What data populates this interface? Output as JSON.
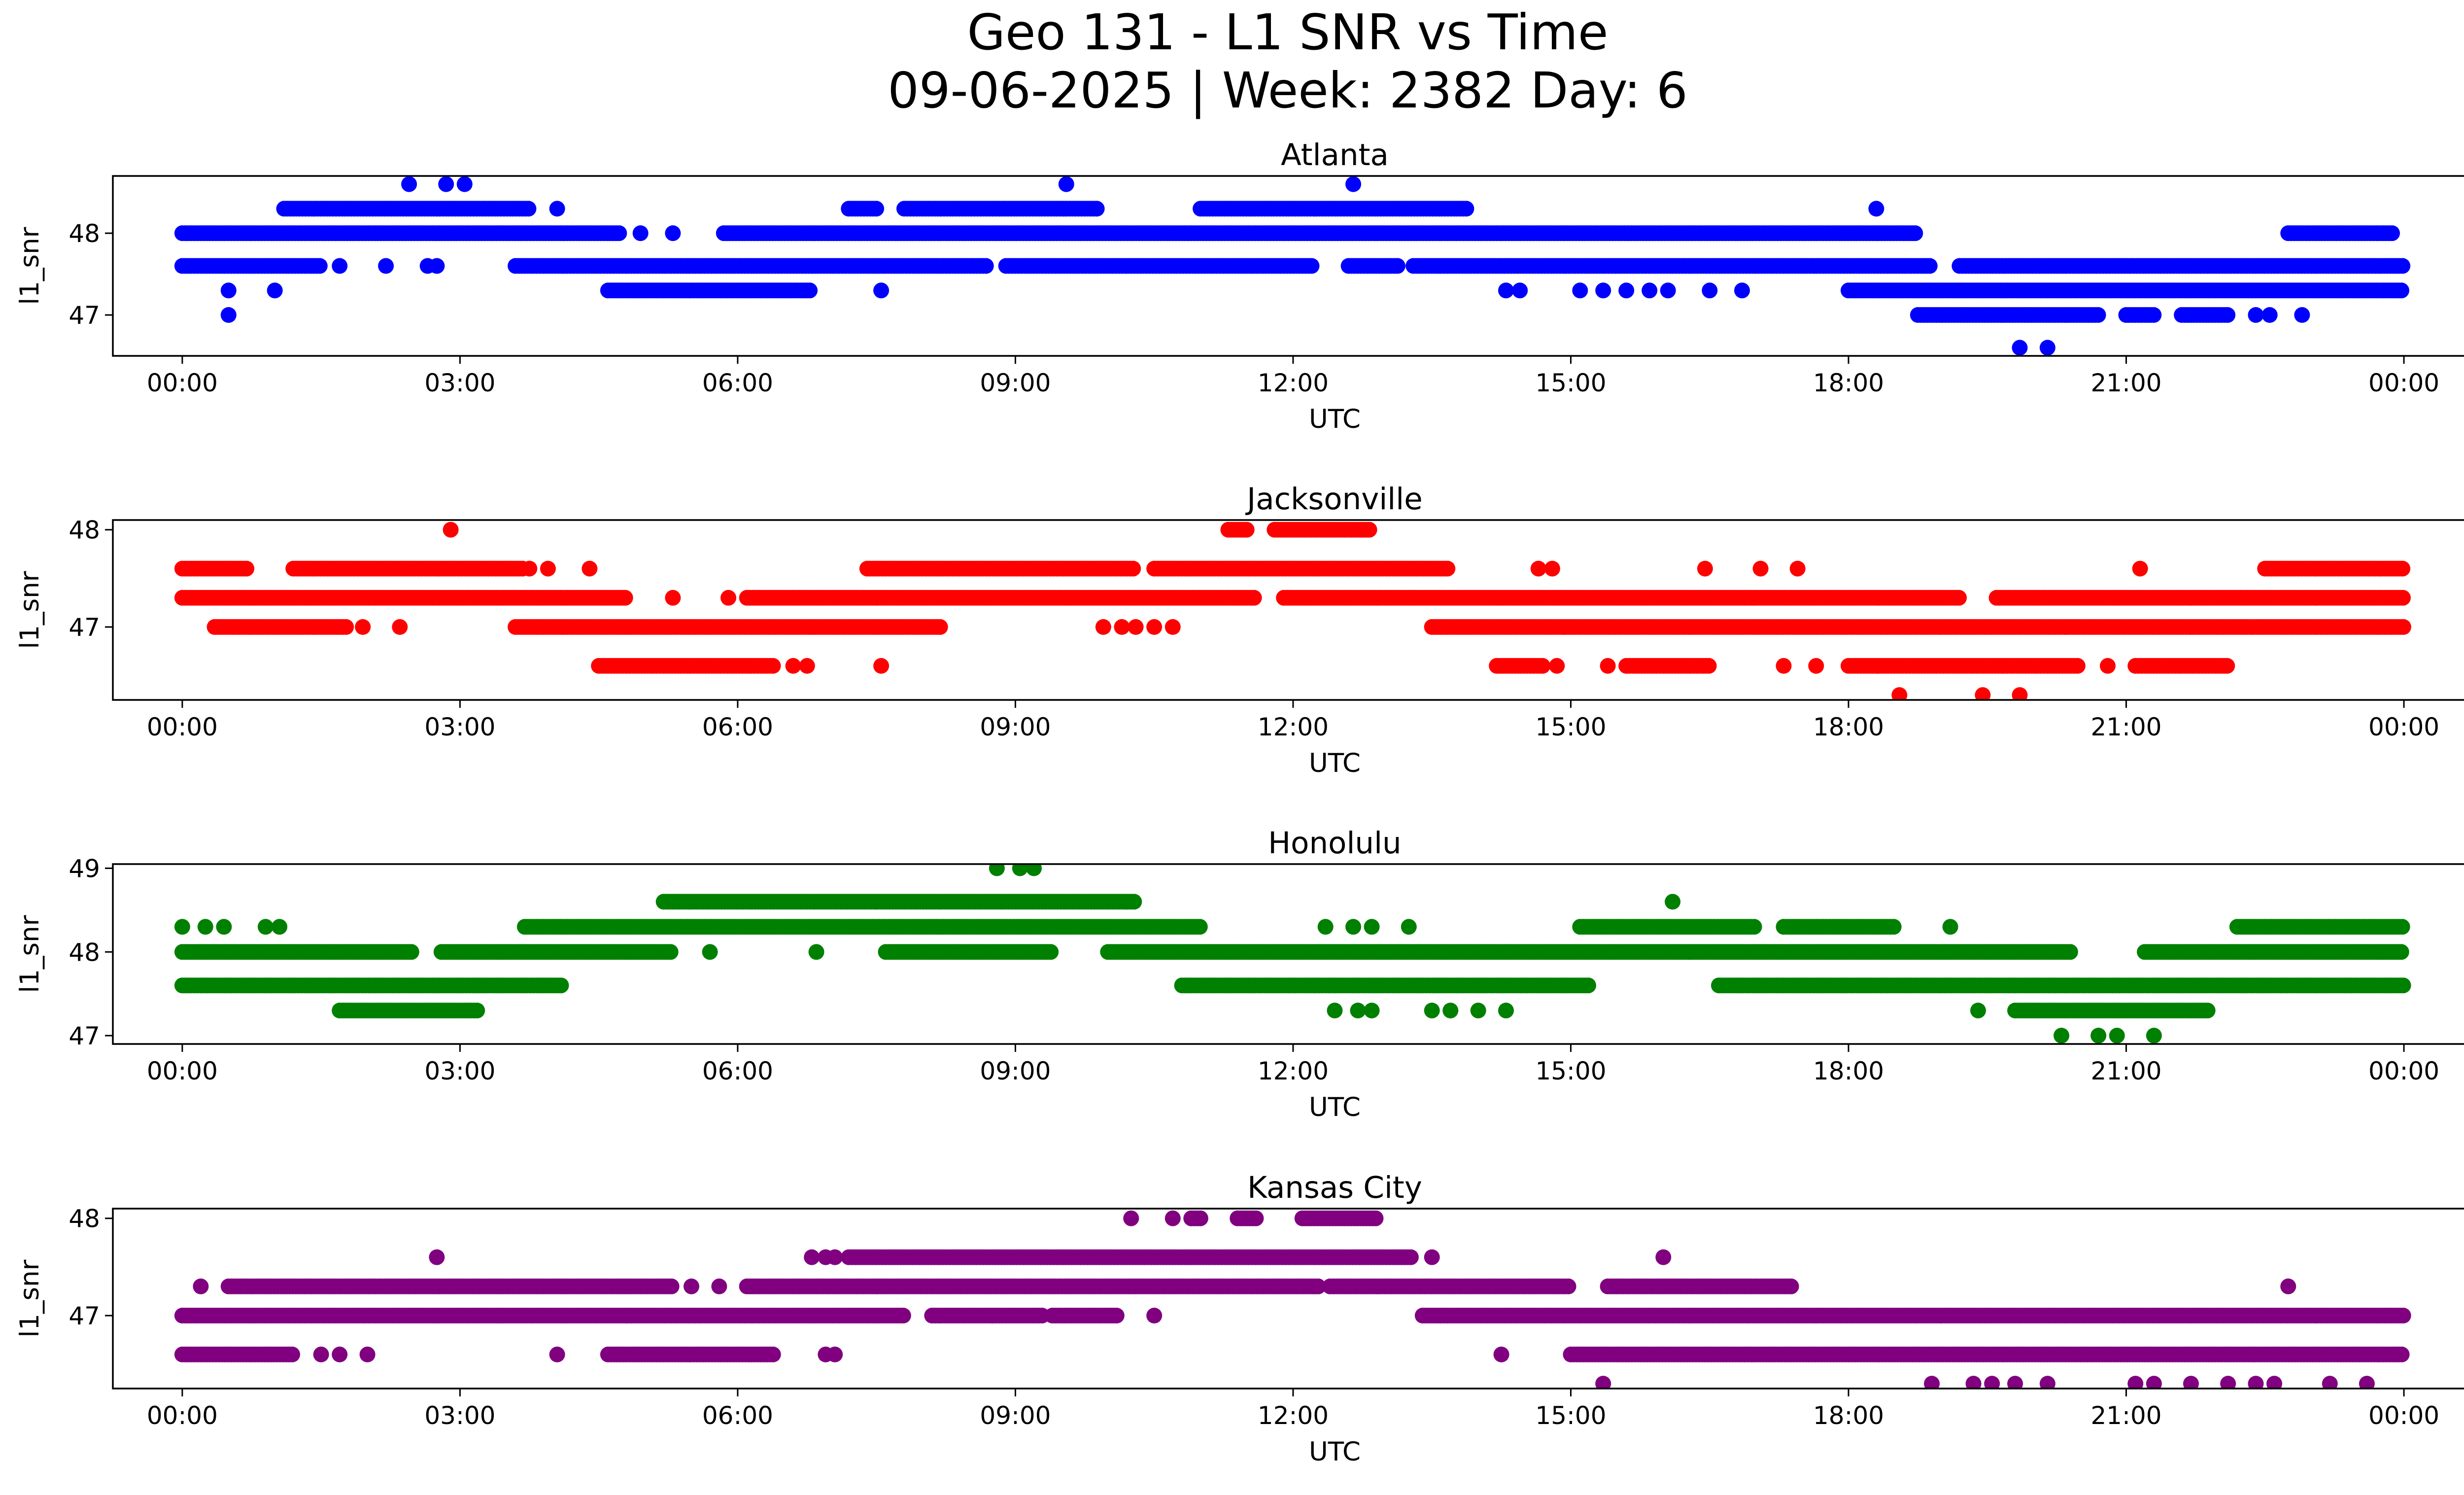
{
  "figure": {
    "title_line1": "Geo 131 - L1 SNR vs Time",
    "title_line2": "09-06-2025 | Week: 2382 Day: 6"
  },
  "chart_data": [
    {
      "type": "scatter",
      "title": "Atlanta",
      "xlabel": "UTC",
      "ylabel": "l1_snr",
      "color": "#0000ff",
      "xlim_hours": [
        -0.75,
        25.65
      ],
      "ylim": [
        46.5,
        48.7
      ],
      "yticks": [
        47,
        48
      ],
      "ytick_labels": [
        "47",
        "48"
      ],
      "xticks_hours": [
        0,
        3,
        6,
        9,
        12,
        15,
        18,
        21,
        24
      ],
      "xtick_labels": [
        "00:00",
        "03:00",
        "06:00",
        "09:00",
        "12:00",
        "15:00",
        "18:00",
        "21:00",
        "00:00"
      ],
      "segments": [
        {
          "y": 48.0,
          "ranges": [
            [
              0.0,
              4.75
            ],
            [
              5.85,
              18.75
            ],
            [
              22.75,
              23.9
            ]
          ]
        },
        {
          "y": 47.6,
          "ranges": [
            [
              0.0,
              1.5
            ],
            [
              3.6,
              8.7
            ],
            [
              8.9,
              12.2
            ],
            [
              12.6,
              13.15
            ],
            [
              13.3,
              18.9
            ],
            [
              19.2,
              24.0
            ]
          ]
        },
        {
          "y": 48.3,
          "ranges": [
            [
              1.1,
              3.75
            ],
            [
              7.2,
              7.5
            ],
            [
              7.8,
              9.9
            ],
            [
              11.0,
              13.9
            ]
          ]
        },
        {
          "y": 47.3,
          "ranges": [
            [
              4.6,
              6.8
            ],
            [
              18.0,
              24.0
            ]
          ]
        },
        {
          "y": 47.0,
          "ranges": [
            [
              18.75,
              20.7
            ],
            [
              21.0,
              21.3
            ],
            [
              21.6,
              22.1
            ]
          ]
        }
      ],
      "points": [
        [
          0.5,
          47.3
        ],
        [
          0.5,
          47.0
        ],
        [
          1.0,
          47.3
        ],
        [
          1.7,
          47.6
        ],
        [
          2.2,
          47.6
        ],
        [
          2.65,
          47.6
        ],
        [
          2.75,
          47.6
        ],
        [
          2.45,
          48.6
        ],
        [
          2.85,
          48.6
        ],
        [
          3.05,
          48.6
        ],
        [
          4.05,
          48.3
        ],
        [
          4.95,
          48.0
        ],
        [
          5.3,
          48.0
        ],
        [
          7.55,
          47.3
        ],
        [
          9.55,
          48.6
        ],
        [
          12.65,
          48.6
        ],
        [
          14.3,
          47.3
        ],
        [
          14.45,
          47.3
        ],
        [
          15.1,
          47.3
        ],
        [
          15.35,
          47.3
        ],
        [
          15.6,
          47.3
        ],
        [
          15.85,
          47.3
        ],
        [
          16.05,
          47.3
        ],
        [
          16.5,
          47.3
        ],
        [
          16.85,
          47.3
        ],
        [
          18.3,
          48.3
        ],
        [
          19.85,
          46.6
        ],
        [
          20.15,
          46.6
        ],
        [
          22.4,
          47.0
        ],
        [
          22.55,
          47.0
        ],
        [
          22.9,
          47.0
        ]
      ]
    },
    {
      "type": "scatter",
      "title": "Jacksonville",
      "xlabel": "UTC",
      "ylabel": "l1_snr",
      "color": "#ff0000",
      "xlim_hours": [
        -0.75,
        25.65
      ],
      "ylim": [
        46.25,
        48.1
      ],
      "yticks": [
        47,
        48
      ],
      "ytick_labels": [
        "47",
        "48"
      ],
      "xticks_hours": [
        0,
        3,
        6,
        9,
        12,
        15,
        18,
        21,
        24
      ],
      "xtick_labels": [
        "00:00",
        "03:00",
        "06:00",
        "09:00",
        "12:00",
        "15:00",
        "18:00",
        "21:00",
        "00:00"
      ],
      "segments": [
        {
          "y": 47.6,
          "ranges": [
            [
              0.0,
              0.7
            ],
            [
              1.2,
              3.7
            ],
            [
              7.4,
              10.3
            ],
            [
              10.5,
              13.7
            ],
            [
              22.5,
              24.0
            ]
          ]
        },
        {
          "y": 47.3,
          "ranges": [
            [
              0.0,
              4.8
            ],
            [
              6.1,
              11.6
            ],
            [
              11.9,
              19.2
            ],
            [
              19.6,
              24.0
            ]
          ]
        },
        {
          "y": 47.0,
          "ranges": [
            [
              0.35,
              1.8
            ],
            [
              3.6,
              8.2
            ],
            [
              13.5,
              24.0
            ]
          ]
        },
        {
          "y": 46.6,
          "ranges": [
            [
              4.5,
              6.4
            ],
            [
              14.2,
              14.7
            ],
            [
              15.6,
              16.5
            ],
            [
              18.0,
              20.5
            ],
            [
              21.1,
              22.1
            ]
          ]
        },
        {
          "y": 48.0,
          "ranges": [
            [
              11.3,
              11.5
            ],
            [
              11.8,
              12.85
            ]
          ]
        }
      ],
      "points": [
        [
          2.9,
          48.0
        ],
        [
          2.35,
          47.0
        ],
        [
          1.95,
          47.0
        ],
        [
          3.75,
          47.6
        ],
        [
          3.95,
          47.6
        ],
        [
          4.4,
          47.6
        ],
        [
          5.3,
          47.3
        ],
        [
          5.9,
          47.3
        ],
        [
          6.6,
          46.6
        ],
        [
          6.75,
          46.6
        ],
        [
          7.55,
          46.6
        ],
        [
          9.95,
          47.0
        ],
        [
          10.15,
          47.0
        ],
        [
          10.3,
          47.0
        ],
        [
          10.5,
          47.0
        ],
        [
          10.7,
          47.0
        ],
        [
          14.85,
          46.6
        ],
        [
          14.65,
          47.6
        ],
        [
          14.8,
          47.6
        ],
        [
          15.4,
          46.6
        ],
        [
          16.45,
          47.6
        ],
        [
          17.05,
          47.6
        ],
        [
          17.45,
          47.6
        ],
        [
          17.3,
          46.6
        ],
        [
          17.65,
          46.6
        ],
        [
          18.55,
          46.3
        ],
        [
          19.45,
          46.3
        ],
        [
          19.85,
          46.3
        ],
        [
          21.15,
          47.6
        ],
        [
          20.8,
          46.6
        ]
      ]
    },
    {
      "type": "scatter",
      "title": "Honolulu",
      "xlabel": "UTC",
      "ylabel": "l1_snr",
      "color": "#008000",
      "xlim_hours": [
        -0.75,
        25.65
      ],
      "ylim": [
        46.9,
        49.05
      ],
      "yticks": [
        47,
        48,
        49
      ],
      "ytick_labels": [
        "47",
        "48",
        "49"
      ],
      "xticks_hours": [
        0,
        3,
        6,
        9,
        12,
        15,
        18,
        21,
        24
      ],
      "xtick_labels": [
        "00:00",
        "03:00",
        "06:00",
        "09:00",
        "12:00",
        "15:00",
        "18:00",
        "21:00",
        "00:00"
      ],
      "segments": [
        {
          "y": 48.0,
          "ranges": [
            [
              0.0,
              2.5
            ],
            [
              2.8,
              5.3
            ],
            [
              7.6,
              9.4
            ],
            [
              10.0,
              20.4
            ],
            [
              21.2,
              24.0
            ]
          ]
        },
        {
          "y": 47.6,
          "ranges": [
            [
              0.0,
              4.1
            ],
            [
              10.8,
              15.2
            ],
            [
              16.6,
              24.0
            ]
          ]
        },
        {
          "y": 48.3,
          "ranges": [
            [
              3.7,
              11.0
            ],
            [
              15.1,
              17.0
            ],
            [
              17.3,
              18.5
            ],
            [
              22.2,
              24.0
            ]
          ]
        },
        {
          "y": 48.6,
          "ranges": [
            [
              5.2,
              10.3
            ]
          ]
        },
        {
          "y": 47.3,
          "ranges": [
            [
              1.7,
              3.2
            ],
            [
              19.8,
              21.9
            ]
          ]
        }
      ],
      "points": [
        [
          0.0,
          48.3
        ],
        [
          0.25,
          48.3
        ],
        [
          0.45,
          48.3
        ],
        [
          0.9,
          48.3
        ],
        [
          1.05,
          48.3
        ],
        [
          5.7,
          48.0
        ],
        [
          6.85,
          48.0
        ],
        [
          12.35,
          48.3
        ],
        [
          12.65,
          48.3
        ],
        [
          12.85,
          48.3
        ],
        [
          13.25,
          48.3
        ],
        [
          12.45,
          47.3
        ],
        [
          12.7,
          47.3
        ],
        [
          12.85,
          47.3
        ],
        [
          13.5,
          47.3
        ],
        [
          13.7,
          47.3
        ],
        [
          14.0,
          47.3
        ],
        [
          14.3,
          47.3
        ],
        [
          16.1,
          48.6
        ],
        [
          19.1,
          48.3
        ],
        [
          19.4,
          47.3
        ],
        [
          8.8,
          49.0
        ],
        [
          9.05,
          49.0
        ],
        [
          9.2,
          49.0
        ],
        [
          20.3,
          47.0
        ],
        [
          20.7,
          47.0
        ],
        [
          20.9,
          47.0
        ],
        [
          21.3,
          47.0
        ]
      ]
    },
    {
      "type": "scatter",
      "title": "Kansas City",
      "xlabel": "UTC",
      "ylabel": "l1_snr",
      "color": "#800080",
      "xlim_hours": [
        -0.75,
        25.65
      ],
      "ylim": [
        46.25,
        48.1
      ],
      "yticks": [
        47,
        48
      ],
      "ytick_labels": [
        "47",
        "48"
      ],
      "xticks_hours": [
        0,
        3,
        6,
        9,
        12,
        15,
        18,
        21,
        24
      ],
      "xtick_labels": [
        "00:00",
        "03:00",
        "06:00",
        "09:00",
        "12:00",
        "15:00",
        "18:00",
        "21:00",
        "00:00"
      ],
      "segments": [
        {
          "y": 47.0,
          "ranges": [
            [
              0.0,
              7.8
            ],
            [
              8.1,
              9.3
            ],
            [
              9.4,
              10.1
            ],
            [
              13.4,
              24.0
            ]
          ]
        },
        {
          "y": 47.3,
          "ranges": [
            [
              0.5,
              5.3
            ],
            [
              6.1,
              12.3
            ],
            [
              12.4,
              15.0
            ],
            [
              15.4,
              17.4
            ]
          ]
        },
        {
          "y": 46.6,
          "ranges": [
            [
              0.0,
              1.2
            ],
            [
              4.6,
              6.4
            ],
            [
              15.0,
              24.0
            ]
          ]
        },
        {
          "y": 47.6,
          "ranges": [
            [
              7.2,
              13.3
            ]
          ]
        },
        {
          "y": 48.0,
          "ranges": [
            [
              10.9,
              11.0
            ],
            [
              11.4,
              11.6
            ],
            [
              12.1,
              12.9
            ]
          ]
        }
      ],
      "points": [
        [
          0.2,
          47.3
        ],
        [
          2.75,
          47.6
        ],
        [
          1.5,
          46.6
        ],
        [
          1.7,
          46.6
        ],
        [
          2.0,
          46.6
        ],
        [
          4.05,
          46.6
        ],
        [
          5.5,
          47.3
        ],
        [
          5.8,
          47.3
        ],
        [
          6.95,
          46.6
        ],
        [
          7.05,
          46.6
        ],
        [
          6.8,
          47.6
        ],
        [
          6.95,
          47.6
        ],
        [
          7.05,
          47.6
        ],
        [
          8.75,
          47.0
        ],
        [
          10.25,
          48.0
        ],
        [
          10.5,
          47.0
        ],
        [
          10.7,
          48.0
        ],
        [
          13.5,
          47.6
        ],
        [
          14.25,
          46.6
        ],
        [
          15.35,
          46.3
        ],
        [
          16.0,
          47.6
        ],
        [
          18.9,
          46.3
        ],
        [
          19.35,
          46.3
        ],
        [
          19.55,
          46.3
        ],
        [
          19.8,
          46.3
        ],
        [
          20.15,
          46.3
        ],
        [
          21.1,
          46.3
        ],
        [
          21.3,
          46.3
        ],
        [
          21.7,
          46.3
        ],
        [
          22.1,
          46.3
        ],
        [
          22.4,
          46.3
        ],
        [
          22.6,
          46.3
        ],
        [
          23.2,
          46.3
        ],
        [
          23.6,
          46.3
        ],
        [
          22.75,
          47.3
        ]
      ]
    }
  ]
}
